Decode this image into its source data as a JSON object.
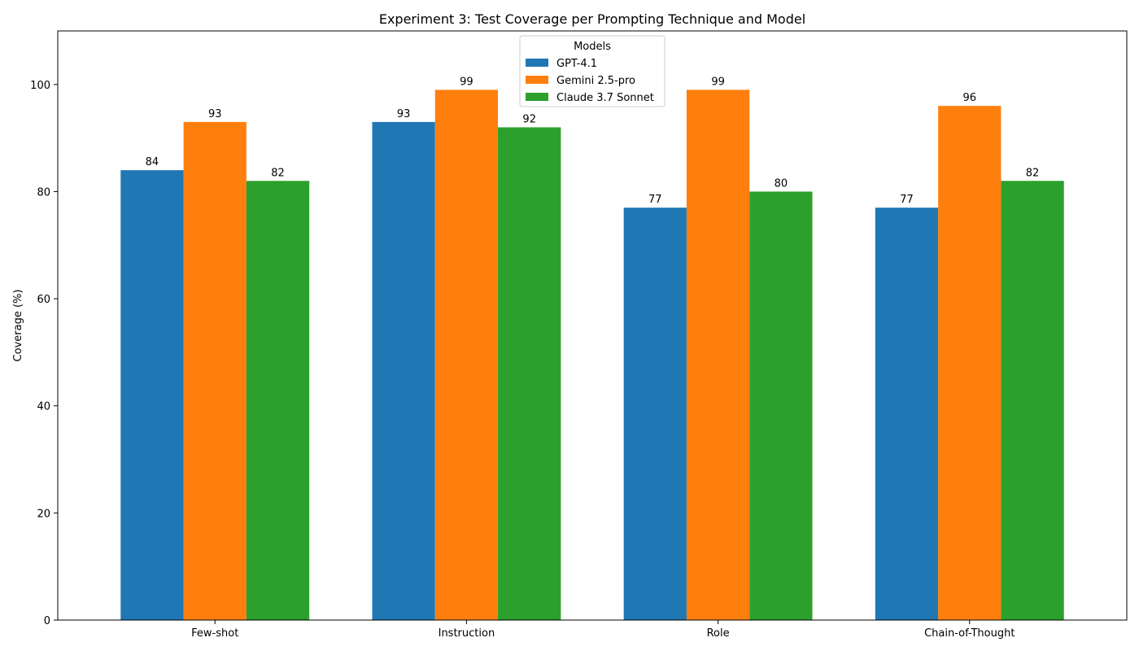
{
  "chart_data": {
    "type": "bar",
    "title": "Experiment 3: Test Coverage per Prompting Technique and Model",
    "xlabel": "",
    "ylabel": "Coverage (%)",
    "categories": [
      "Few-shot",
      "Instruction",
      "Role",
      "Chain-of-Thought"
    ],
    "series": [
      {
        "name": "GPT-4.1",
        "color": "#1f77b4",
        "values": [
          84,
          93,
          77,
          77
        ]
      },
      {
        "name": "Gemini 2.5-pro",
        "color": "#ff7f0e",
        "values": [
          93,
          99,
          99,
          96
        ]
      },
      {
        "name": "Claude 3.7 Sonnet",
        "color": "#2ca02c",
        "values": [
          82,
          92,
          80,
          82
        ]
      }
    ],
    "ylim": [
      0,
      110
    ],
    "yticks": [
      0,
      20,
      40,
      60,
      80,
      100
    ],
    "grid": false,
    "legend": {
      "title": "Models",
      "placement": "top-center"
    }
  }
}
